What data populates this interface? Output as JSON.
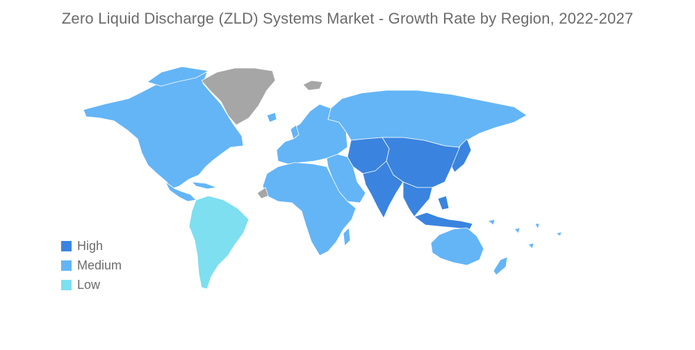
{
  "title": "Zero Liquid Discharge (ZLD) Systems Market - Growth Rate by Region, 2022-2027",
  "colors": {
    "high": "#3a84df",
    "medium": "#64b5f6",
    "low": "#7ddff0",
    "no_data": "#a6a6a6",
    "border": "#ffffff"
  },
  "legend": [
    {
      "label": "High",
      "color": "#3a84df"
    },
    {
      "label": "Medium",
      "color": "#64b5f6"
    },
    {
      "label": "Low",
      "color": "#7ddff0"
    }
  ],
  "regions": [
    {
      "name": "North America",
      "level": "medium"
    },
    {
      "name": "Greenland",
      "level": "no_data"
    },
    {
      "name": "Central America & Caribbean",
      "level": "medium"
    },
    {
      "name": "South America",
      "level": "low"
    },
    {
      "name": "Europe",
      "level": "medium"
    },
    {
      "name": "Russia",
      "level": "medium"
    },
    {
      "name": "Middle East",
      "level": "medium"
    },
    {
      "name": "Africa",
      "level": "medium"
    },
    {
      "name": "Madagascar",
      "level": "medium"
    },
    {
      "name": "Central Asia",
      "level": "high"
    },
    {
      "name": "China",
      "level": "high"
    },
    {
      "name": "India",
      "level": "high"
    },
    {
      "name": "Southeast Asia",
      "level": "high"
    },
    {
      "name": "Japan",
      "level": "high"
    },
    {
      "name": "Indonesia",
      "level": "high"
    },
    {
      "name": "Australia",
      "level": "medium"
    },
    {
      "name": "New Zealand",
      "level": "medium"
    },
    {
      "name": "Pacific Islands",
      "level": "medium"
    },
    {
      "name": "Svalbard",
      "level": "no_data"
    },
    {
      "name": "Western Sahara",
      "level": "no_data"
    }
  ]
}
